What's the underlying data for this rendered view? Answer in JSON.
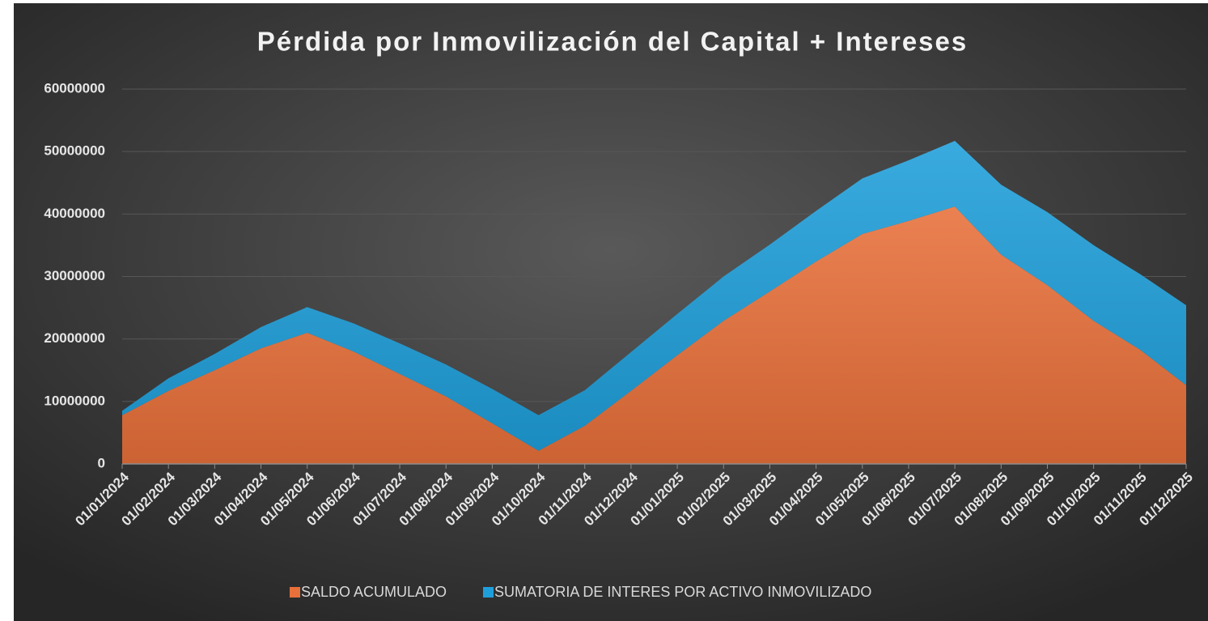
{
  "chart_data": {
    "type": "stacked_area",
    "title": "Pérdida por Inmovilización del Capital + Intereses",
    "categories": [
      "01/01/2024",
      "01/02/2024",
      "01/03/2024",
      "01/04/2024",
      "01/05/2024",
      "01/06/2024",
      "01/07/2024",
      "01/08/2024",
      "01/09/2024",
      "01/10/2024",
      "01/11/2024",
      "01/12/2024",
      "01/01/2025",
      "01/02/2025",
      "01/03/2025",
      "01/04/2025",
      "01/05/2025",
      "01/06/2025",
      "01/07/2025",
      "01/08/2025",
      "01/09/2025",
      "01/10/2025",
      "01/11/2025",
      "01/12/2025"
    ],
    "series": [
      {
        "name": "SALDO ACUMULADO",
        "color": "#e8703a",
        "values": [
          7800000,
          11700000,
          15000000,
          18500000,
          21000000,
          18000000,
          14400000,
          10800000,
          6500000,
          2100000,
          6100000,
          11700000,
          17400000,
          22900000,
          27600000,
          32400000,
          36800000,
          38900000,
          41200000,
          33500000,
          28600000,
          22900000,
          18300000,
          12600000
        ]
      },
      {
        "name": "SUMATORIA DE INTERES POR ACTIVO INMOVILIZADO",
        "color": "#1f9fda",
        "values": [
          700000,
          2000000,
          2600000,
          3400000,
          4100000,
          4500000,
          4900000,
          5100000,
          5500000,
          5700000,
          5700000,
          6200000,
          6600000,
          7100000,
          7500000,
          8100000,
          8900000,
          9700000,
          10500000,
          11200000,
          11700000,
          12100000,
          12100000,
          12800000
        ]
      }
    ],
    "ylim": [
      0,
      60000000
    ],
    "yticks": [
      0,
      10000000,
      20000000,
      30000000,
      40000000,
      50000000,
      60000000
    ],
    "grid": true,
    "legend": "bottom"
  }
}
